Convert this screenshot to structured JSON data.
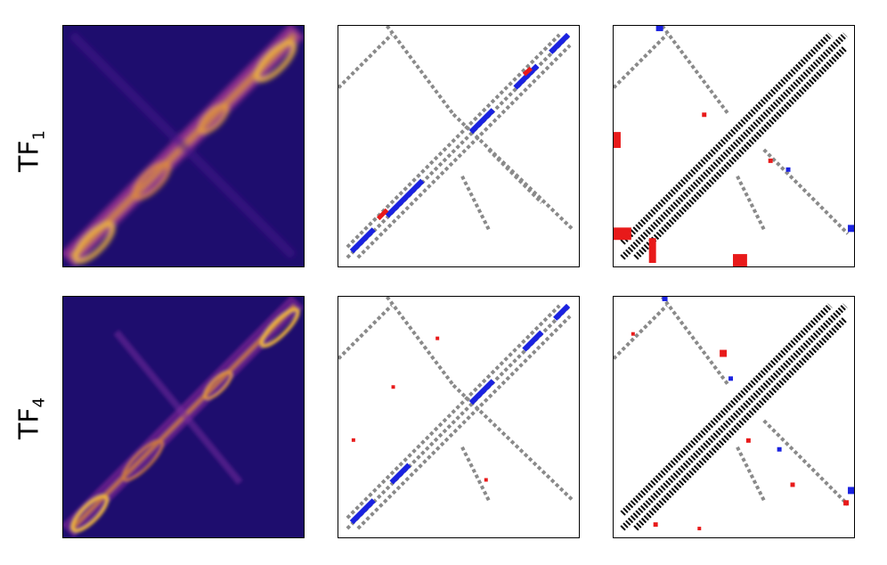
{
  "rows": [
    {
      "label_main": "TF",
      "label_sub": "1"
    },
    {
      "label_main": "TF",
      "label_sub": "4"
    }
  ],
  "colors": {
    "heatmap_low": "#1e0d6e",
    "heatmap_mid": "#9a2da0",
    "heatmap_high": "#f2c02e",
    "grey": "#8a8a8a",
    "blue": "#1a22e0",
    "red": "#e81a1a",
    "black": "#000000"
  }
}
